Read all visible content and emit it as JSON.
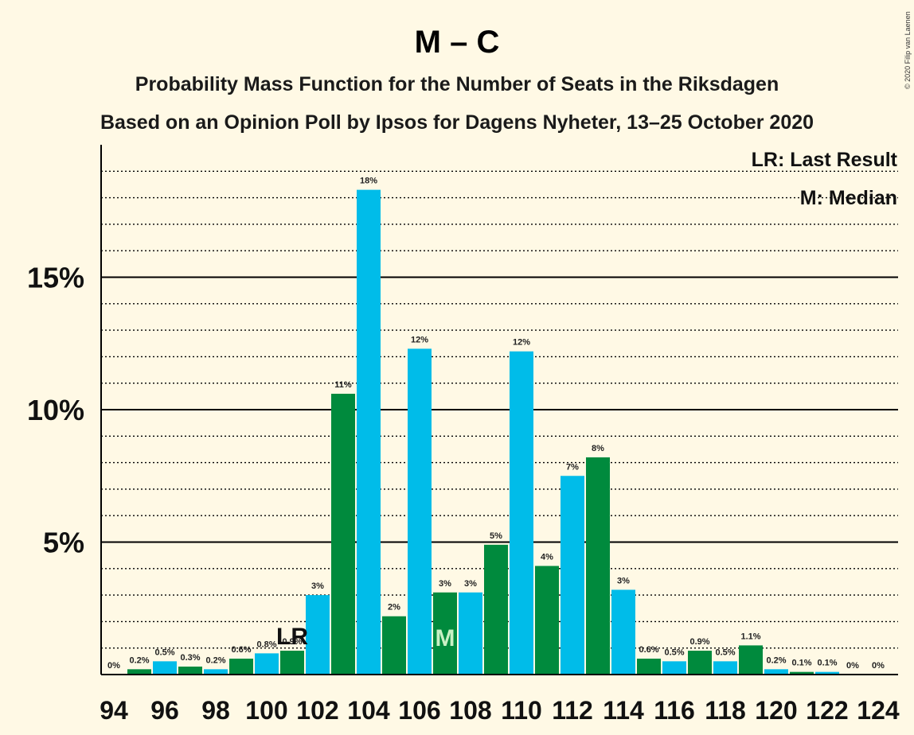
{
  "title": "M – C",
  "subtitle1": "Probability Mass Function for the Number of Seats in the Riksdagen",
  "subtitle2": "Based on an Opinion Poll by Ipsos for Dagens Nyheter, 13–25 October 2020",
  "legend": {
    "lr": "LR: Last Result",
    "m": "M: Median"
  },
  "copyright": "© 2020 Filip van Laenen",
  "colors": {
    "background": "#fff9e5",
    "cyan": "#00bce9",
    "green": "#008a3d",
    "median_marker": "#c9f0c5"
  },
  "chart_data": {
    "type": "bar",
    "x": [
      94,
      95,
      96,
      97,
      98,
      99,
      100,
      101,
      102,
      103,
      104,
      105,
      106,
      107,
      108,
      109,
      110,
      111,
      112,
      113,
      114,
      115,
      116,
      117,
      118,
      119,
      120,
      121,
      122,
      123,
      124
    ],
    "values": [
      0,
      0.2,
      0.5,
      0.3,
      0.2,
      0.6,
      0.8,
      0.9,
      3,
      10.6,
      18.3,
      2.2,
      12.3,
      3.1,
      3.1,
      4.9,
      12.2,
      4.1,
      7.5,
      8.2,
      3.2,
      0.6,
      0.5,
      0.9,
      0.5,
      1.1,
      0.2,
      0.1,
      0.1,
      0,
      0
    ],
    "labels": [
      "0%",
      "0.2%",
      "0.5%",
      "0.3%",
      "0.2%",
      "0.6%",
      "0.8%",
      "0.9%",
      "3%",
      "11%",
      "18%",
      "2%",
      "12%",
      "3%",
      "3%",
      "5%",
      "12%",
      "4%",
      "7%",
      "8%",
      "3%",
      "0.6%",
      "0.5%",
      "0.9%",
      "0.5%",
      "1.1%",
      "0.2%",
      "0.1%",
      "0.1%",
      "0%",
      "0%"
    ],
    "xticks": [
      94,
      96,
      98,
      100,
      102,
      104,
      106,
      108,
      110,
      112,
      114,
      116,
      118,
      120,
      122,
      124
    ],
    "ytick_values": [
      5,
      10,
      15
    ],
    "ytick_labels": [
      "5%",
      "10%",
      "15%"
    ],
    "ylim": [
      0,
      20
    ],
    "last_result_seat": 101,
    "last_result_marker": "LR",
    "median_seat": 107,
    "median_marker": "M",
    "grid": "dotted every 1%, solid every 5%"
  }
}
